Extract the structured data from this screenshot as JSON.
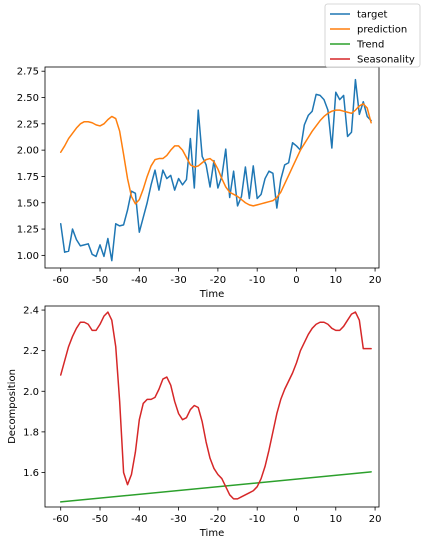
{
  "legend": {
    "entries": [
      {
        "name": "target",
        "color": "#1f77b4"
      },
      {
        "name": "prediction",
        "color": "#ff7f0e"
      },
      {
        "name": "Trend",
        "color": "#2ca02c"
      },
      {
        "name": "Seasonality",
        "color": "#d62728"
      }
    ],
    "placement": "top-right"
  },
  "chart_data": [
    {
      "type": "line",
      "title": "",
      "xlabel": "Time",
      "ylabel": "",
      "xlim": [
        -64,
        21
      ],
      "ylim": [
        0.88,
        2.79
      ],
      "xticks": [
        -60,
        -50,
        -40,
        -30,
        -20,
        -10,
        0,
        10,
        20
      ],
      "yticks": [
        1.0,
        1.25,
        1.5,
        1.75,
        2.0,
        2.25,
        2.5,
        2.75
      ],
      "ytick_labels": [
        "1.00",
        "1.25",
        "1.50",
        "1.75",
        "2.00",
        "2.25",
        "2.50",
        "2.75"
      ],
      "grid": false,
      "series": [
        {
          "name": "target",
          "color": "#1f77b4",
          "x": [
            -60,
            -59,
            -58,
            -57,
            -56,
            -55,
            -54,
            -53,
            -52,
            -51,
            -50,
            -49,
            -48,
            -47,
            -46,
            -45,
            -44,
            -43,
            -42,
            -41,
            -40,
            -39,
            -38,
            -37,
            -36,
            -35,
            -34,
            -33,
            -32,
            -31,
            -30,
            -29,
            -28,
            -27,
            -26,
            -25,
            -24,
            -23,
            -22,
            -21,
            -20,
            -19,
            -18,
            -17,
            -16,
            -15,
            -14,
            -13,
            -12,
            -11,
            -10,
            -9,
            -8,
            -7,
            -6,
            -5,
            -4,
            -3,
            -2,
            -1,
            0,
            1,
            2,
            3,
            4,
            5,
            6,
            7,
            8,
            9,
            10,
            11,
            12,
            13,
            14,
            15,
            16,
            17,
            18,
            19
          ],
          "y": [
            1.3,
            1.03,
            1.04,
            1.25,
            1.15,
            1.09,
            1.1,
            1.11,
            1.01,
            0.99,
            1.1,
            0.99,
            1.16,
            0.95,
            1.3,
            1.28,
            1.29,
            1.43,
            1.61,
            1.59,
            1.22,
            1.36,
            1.5,
            1.67,
            1.81,
            1.62,
            1.81,
            1.73,
            1.76,
            1.62,
            1.73,
            1.67,
            1.72,
            2.11,
            1.64,
            2.38,
            1.94,
            1.86,
            1.65,
            1.9,
            1.64,
            1.75,
            2.01,
            1.55,
            1.8,
            1.47,
            1.56,
            1.84,
            1.54,
            1.85,
            1.54,
            1.58,
            1.73,
            1.8,
            1.78,
            1.45,
            1.72,
            1.86,
            1.88,
            2.07,
            2.04,
            2.0,
            2.24,
            2.33,
            2.37,
            2.53,
            2.52,
            2.48,
            2.38,
            2.02,
            2.55,
            2.48,
            2.52,
            2.13,
            2.17,
            2.67,
            2.34,
            2.46,
            2.32,
            2.28
          ]
        },
        {
          "name": "prediction",
          "color": "#ff7f0e",
          "x": [
            -60,
            -59,
            -58,
            -57,
            -56,
            -55,
            -54,
            -53,
            -52,
            -51,
            -50,
            -49,
            -48,
            -47,
            -46,
            -45,
            -44,
            -43,
            -42,
            -41,
            -40,
            -39,
            -38,
            -37,
            -36,
            -35,
            -34,
            -33,
            -32,
            -31,
            -30,
            -29,
            -28,
            -27,
            -26,
            -25,
            -24,
            -23,
            -22,
            -21,
            -20,
            -19,
            -18,
            -17,
            -16,
            -15,
            -14,
            -13,
            -12,
            -11,
            -10,
            -9,
            -8,
            -7,
            -6,
            -5,
            -4,
            -3,
            -2,
            -1,
            0,
            1,
            2,
            3,
            4,
            5,
            6,
            7,
            8,
            9,
            10,
            11,
            12,
            13,
            14,
            15,
            16,
            17,
            18,
            19
          ],
          "y": [
            1.98,
            2.04,
            2.11,
            2.16,
            2.21,
            2.25,
            2.27,
            2.27,
            2.26,
            2.24,
            2.23,
            2.25,
            2.29,
            2.32,
            2.3,
            2.18,
            1.96,
            1.73,
            1.56,
            1.49,
            1.53,
            1.63,
            1.75,
            1.85,
            1.91,
            1.92,
            1.92,
            1.95,
            2.0,
            2.04,
            2.04,
            2.0,
            1.93,
            1.86,
            1.84,
            1.85,
            1.88,
            1.91,
            1.92,
            1.89,
            1.82,
            1.73,
            1.65,
            1.6,
            1.58,
            1.56,
            1.53,
            1.5,
            1.48,
            1.47,
            1.48,
            1.49,
            1.5,
            1.51,
            1.52,
            1.55,
            1.6,
            1.68,
            1.76,
            1.84,
            1.92,
            2.0,
            2.06,
            2.12,
            2.18,
            2.23,
            2.28,
            2.32,
            2.35,
            2.37,
            2.38,
            2.38,
            2.37,
            2.36,
            2.35,
            2.38,
            2.42,
            2.44,
            2.4,
            2.26
          ]
        }
      ]
    },
    {
      "type": "line",
      "title": "",
      "xlabel": "Time",
      "ylabel": "Decomposition",
      "xlim": [
        -64,
        21
      ],
      "ylim": [
        1.43,
        2.42
      ],
      "xticks": [
        -60,
        -50,
        -40,
        -30,
        -20,
        -10,
        0,
        10,
        20
      ],
      "yticks": [
        1.6,
        1.8,
        2.0,
        2.2,
        2.4
      ],
      "ytick_labels": [
        "1.6",
        "1.8",
        "2.0",
        "2.2",
        "2.4"
      ],
      "grid": false,
      "series": [
        {
          "name": "Trend",
          "color": "#2ca02c",
          "x": [
            -60,
            19
          ],
          "y": [
            1.455,
            1.603
          ]
        },
        {
          "name": "Seasonality",
          "color": "#d62728",
          "x": [
            -60,
            -59,
            -58,
            -57,
            -56,
            -55,
            -54,
            -53,
            -52,
            -51,
            -50,
            -49,
            -48,
            -47,
            -46,
            -45,
            -44,
            -43,
            -42,
            -41,
            -40,
            -39,
            -38,
            -37,
            -36,
            -35,
            -34,
            -33,
            -32,
            -31,
            -30,
            -29,
            -28,
            -27,
            -26,
            -25,
            -24,
            -23,
            -22,
            -21,
            -20,
            -19,
            -18,
            -17,
            -16,
            -15,
            -14,
            -13,
            -12,
            -11,
            -10,
            -9,
            -8,
            -7,
            -6,
            -5,
            -4,
            -3,
            -2,
            -1,
            0,
            1,
            2,
            3,
            4,
            5,
            6,
            7,
            8,
            9,
            10,
            11,
            12,
            13,
            14,
            15,
            16,
            17,
            18,
            19
          ],
          "y": [
            2.08,
            2.15,
            2.22,
            2.27,
            2.31,
            2.34,
            2.34,
            2.33,
            2.3,
            2.3,
            2.33,
            2.37,
            2.39,
            2.35,
            2.22,
            1.95,
            1.6,
            1.54,
            1.59,
            1.7,
            1.86,
            1.94,
            1.96,
            1.96,
            1.97,
            2.01,
            2.06,
            2.07,
            2.03,
            1.95,
            1.89,
            1.86,
            1.87,
            1.91,
            1.93,
            1.92,
            1.85,
            1.75,
            1.67,
            1.62,
            1.59,
            1.57,
            1.53,
            1.49,
            1.47,
            1.47,
            1.48,
            1.49,
            1.5,
            1.51,
            1.53,
            1.57,
            1.63,
            1.71,
            1.8,
            1.89,
            1.96,
            2.01,
            2.05,
            2.09,
            2.14,
            2.2,
            2.24,
            2.28,
            2.31,
            2.33,
            2.34,
            2.34,
            2.33,
            2.31,
            2.3,
            2.3,
            2.32,
            2.35,
            2.38,
            2.39,
            2.35,
            2.21,
            2.21,
            2.21
          ]
        }
      ]
    }
  ]
}
